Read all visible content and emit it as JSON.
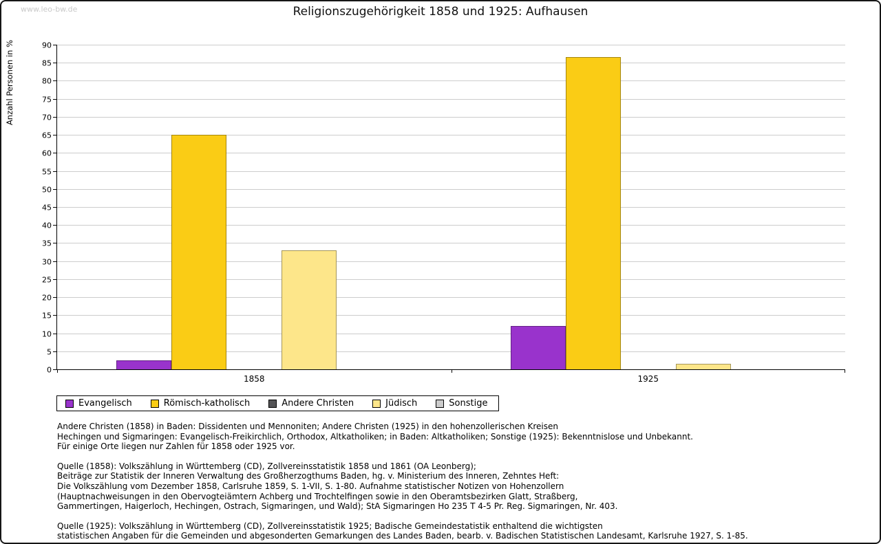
{
  "watermark": "www.leo-bw.de",
  "chart_data": {
    "type": "bar",
    "title": "Religionszugehörigkeit 1858 und 1925: Aufhausen",
    "ylabel": "Anzahl Personen in %",
    "xlabel": "",
    "ylim": [
      0,
      90
    ],
    "ytick_step": 5,
    "grid": true,
    "legend_position": "bottom-left",
    "categories": [
      "1858",
      "1925"
    ],
    "series": [
      {
        "name": "Evangelisch",
        "color": "#9933cc",
        "values": [
          2.5,
          12
        ]
      },
      {
        "name": "Römisch-katholisch",
        "color": "#facc15",
        "values": [
          65,
          86.5
        ]
      },
      {
        "name": "Andere Christen",
        "color": "#545456",
        "values": [
          0,
          0
        ]
      },
      {
        "name": "Jüdisch",
        "color": "#fde68a",
        "values": [
          33,
          1.5
        ]
      },
      {
        "name": "Sonstige",
        "color": "#cccccc",
        "values": [
          0,
          0
        ]
      }
    ]
  },
  "footnotes": [
    [
      "Andere Christen (1858) in Baden: Dissidenten und Mennoniten; Andere Christen (1925) in den hohenzollerischen Kreisen",
      "Hechingen und Sigmaringen: Evangelisch-Freikirchlich, Orthodox, Altkatholiken; in Baden: Altkatholiken; Sonstige (1925): Bekenntnislose und Unbekannt.",
      "Für einige Orte liegen nur Zahlen für 1858 oder 1925 vor."
    ],
    [
      "Quelle (1858): Volkszählung in Württemberg (CD), Zollvereinsstatistik 1858 und 1861 (OA Leonberg);",
      "Beiträge zur Statistik der Inneren Verwaltung des Großherzogthums Baden, hg. v. Ministerium des Inneren, Zehntes Heft:",
      "Die Volkszählung vom Dezember 1858, Carlsruhe 1859, S. 1-VII, S. 1-80. Aufnahme statistischer Notizen von Hohenzollern",
      "(Hauptnachweisungen in den Obervogteiämtern Achberg und Trochtelfingen sowie in den Oberamtsbezirken Glatt, Straßberg,",
      "Gammertingen, Haigerloch, Hechingen, Ostrach, Sigmaringen, und Wald); StA Sigmaringen Ho 235 T 4-5 Pr. Reg. Sigmaringen, Nr. 403."
    ],
    [
      "Quelle (1925): Volkszählung in Württemberg (CD), Zollvereinsstatistik 1925; Badische Gemeindestatistik enthaltend die wichtigsten",
      "statistischen Angaben für die Gemeinden und abgesonderten Gemarkungen des Landes Baden, bearb. v. Badischen Statistischen Landesamt, Karlsruhe 1927, S. 1-85."
    ]
  ]
}
